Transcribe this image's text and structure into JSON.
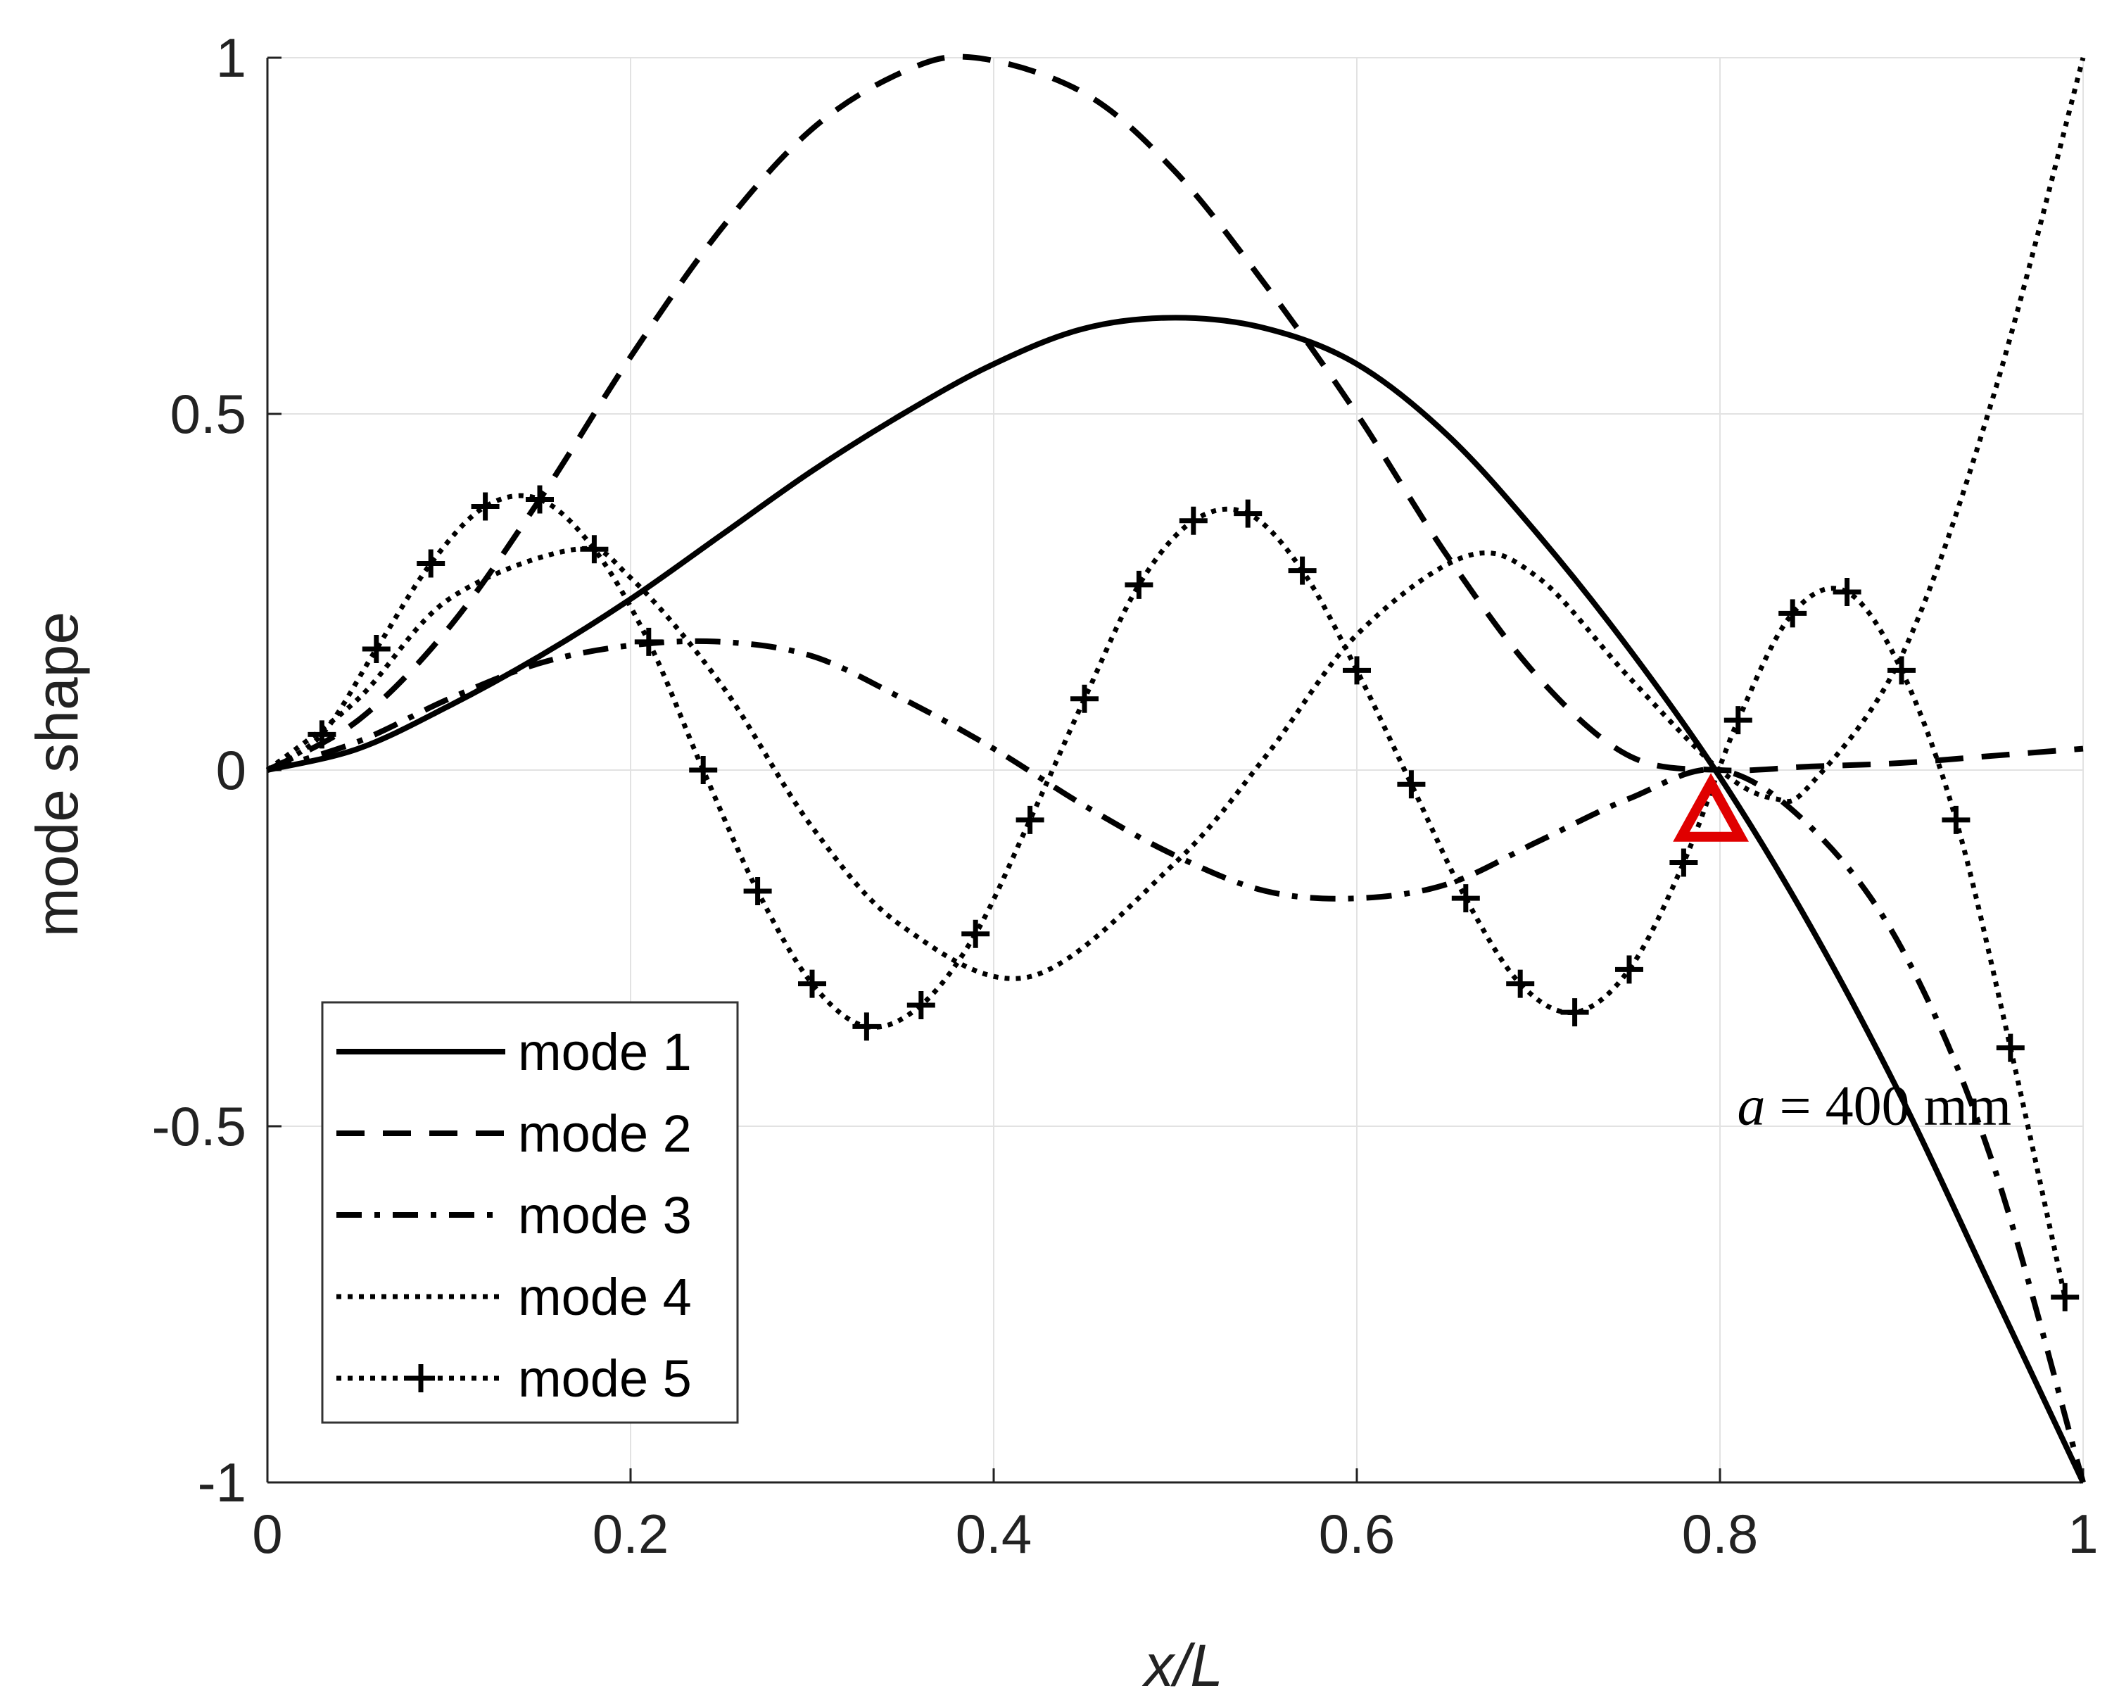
{
  "chart_data": {
    "type": "line",
    "xlabel": "x/L",
    "ylabel": "mode shape",
    "xlim": [
      0,
      1
    ],
    "ylim": [
      -1,
      1
    ],
    "grid": true,
    "x_ticks": [
      {
        "value": 0,
        "label": "0"
      },
      {
        "value": 0.2,
        "label": "0.2"
      },
      {
        "value": 0.4,
        "label": "0.4"
      },
      {
        "value": 0.6,
        "label": "0.6"
      },
      {
        "value": 0.8,
        "label": "0.8"
      },
      {
        "value": 1,
        "label": "1"
      }
    ],
    "y_ticks": [
      {
        "value": -1,
        "label": "-1"
      },
      {
        "value": -0.5,
        "label": "-0.5"
      },
      {
        "value": 0,
        "label": "0"
      },
      {
        "value": 0.5,
        "label": "0.5"
      },
      {
        "value": 1,
        "label": "1"
      }
    ],
    "legend_position": "bottom-left",
    "series": [
      {
        "name": "mode 1",
        "style": "solid",
        "marker": "none",
        "x": [
          0,
          0.05,
          0.1,
          0.15,
          0.2,
          0.25,
          0.3,
          0.35,
          0.4,
          0.45,
          0.5,
          0.55,
          0.6,
          0.65,
          0.7,
          0.75,
          0.8,
          0.85,
          0.9,
          0.95,
          1.0
        ],
        "y": [
          0,
          0.03,
          0.09,
          0.16,
          0.24,
          0.33,
          0.42,
          0.5,
          0.57,
          0.62,
          0.635,
          0.62,
          0.57,
          0.47,
          0.33,
          0.17,
          -0.01,
          -0.22,
          -0.46,
          -0.73,
          -1.0
        ]
      },
      {
        "name": "mode 2",
        "style": "dashed",
        "marker": "none",
        "x": [
          0,
          0.05,
          0.1,
          0.15,
          0.2,
          0.25,
          0.3,
          0.35,
          0.39,
          0.45,
          0.5,
          0.55,
          0.6,
          0.65,
          0.7,
          0.75,
          0.8,
          0.85,
          0.9,
          0.95,
          1.0
        ],
        "y": [
          0,
          0.07,
          0.2,
          0.38,
          0.58,
          0.76,
          0.9,
          0.98,
          1.0,
          0.95,
          0.84,
          0.68,
          0.5,
          0.3,
          0.13,
          0.02,
          0.0,
          0.005,
          0.01,
          0.02,
          0.03
        ]
      },
      {
        "name": "mode 3",
        "style": "dashdot",
        "marker": "none",
        "x": [
          0,
          0.05,
          0.1,
          0.15,
          0.2,
          0.25,
          0.3,
          0.35,
          0.4,
          0.45,
          0.5,
          0.55,
          0.6,
          0.65,
          0.7,
          0.75,
          0.8,
          0.85,
          0.9,
          0.95,
          1.0
        ],
        "y": [
          0,
          0.04,
          0.1,
          0.15,
          0.175,
          0.18,
          0.16,
          0.1,
          0.03,
          -0.05,
          -0.12,
          -0.17,
          -0.18,
          -0.16,
          -0.1,
          -0.04,
          0.0,
          -0.08,
          -0.25,
          -0.55,
          -1.0
        ]
      },
      {
        "name": "mode 4",
        "style": "dotted",
        "marker": "none",
        "x": [
          0,
          0.05,
          0.1,
          0.17,
          0.2,
          0.25,
          0.3,
          0.35,
          0.42,
          0.5,
          0.55,
          0.6,
          0.66,
          0.7,
          0.75,
          0.8,
          0.83,
          0.85,
          0.9,
          0.95,
          1.0
        ],
        "y": [
          0,
          0.1,
          0.24,
          0.31,
          0.27,
          0.12,
          -0.08,
          -0.22,
          -0.29,
          -0.13,
          0.02,
          0.19,
          0.3,
          0.27,
          0.13,
          0.0,
          -0.04,
          -0.02,
          0.16,
          0.52,
          1.0
        ]
      },
      {
        "name": "mode 5",
        "style": "dotted",
        "marker": "plus",
        "x": [
          0,
          0.03,
          0.06,
          0.09,
          0.12,
          0.15,
          0.18,
          0.21,
          0.24,
          0.27,
          0.3,
          0.33,
          0.36,
          0.39,
          0.42,
          0.45,
          0.48,
          0.51,
          0.54,
          0.57,
          0.6,
          0.63,
          0.66,
          0.69,
          0.72,
          0.75,
          0.78,
          0.81,
          0.84,
          0.87,
          0.9,
          0.93,
          0.96,
          0.99
        ],
        "y": [
          0,
          0.05,
          0.17,
          0.29,
          0.37,
          0.38,
          0.31,
          0.18,
          0.0,
          -0.17,
          -0.3,
          -0.36,
          -0.33,
          -0.23,
          -0.07,
          0.1,
          0.26,
          0.35,
          0.36,
          0.28,
          0.14,
          -0.02,
          -0.18,
          -0.3,
          -0.34,
          -0.28,
          -0.13,
          0.07,
          0.22,
          0.25,
          0.14,
          -0.07,
          -0.39,
          -0.74
        ]
      }
    ],
    "annotations": [
      {
        "type": "marker",
        "shape": "triangle",
        "color": "#e00000",
        "x": 0.795,
        "y": -0.06
      },
      {
        "type": "text",
        "italic_part": "a",
        "rest": " = 400 mm",
        "x": 0.885,
        "y": -0.47
      }
    ]
  }
}
